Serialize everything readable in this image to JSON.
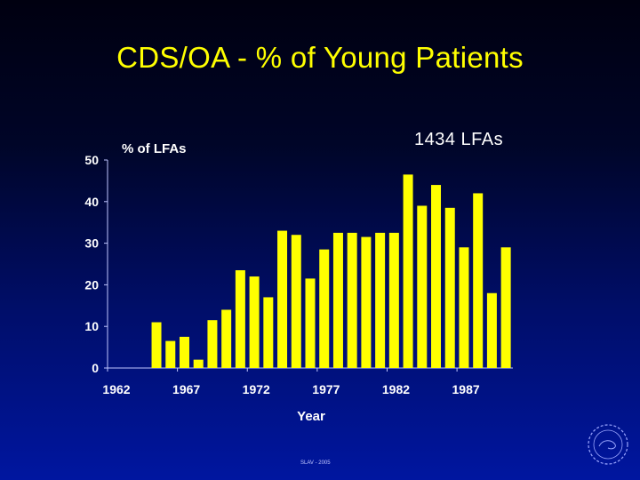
{
  "slide": {
    "title": "CDS/OA - % of Young Patients",
    "annotation": "1434 LFAs",
    "footer": "SLAV - 2005"
  },
  "colors": {
    "title": "#ffff00",
    "bar": "#ffff00",
    "axis_text": "#ffffff"
  },
  "chart_data": {
    "type": "bar",
    "ylabel": "% of LFAs",
    "xlabel": "Year",
    "ylim": [
      0,
      50
    ],
    "yticks": [
      0,
      10,
      20,
      30,
      40,
      50
    ],
    "xticks": [
      1962,
      1967,
      1972,
      1977,
      1982,
      1987
    ],
    "x_range": [
      1962,
      1991
    ],
    "grid": false,
    "series": [
      {
        "color": "#ffff00",
        "points": [
          {
            "x": 1965,
            "y": 11
          },
          {
            "x": 1966,
            "y": 6.5
          },
          {
            "x": 1967,
            "y": 7.5
          },
          {
            "x": 1968,
            "y": 2
          },
          {
            "x": 1969,
            "y": 11.5
          },
          {
            "x": 1970,
            "y": 14
          },
          {
            "x": 1971,
            "y": 23.5
          },
          {
            "x": 1972,
            "y": 22
          },
          {
            "x": 1973,
            "y": 17
          },
          {
            "x": 1974,
            "y": 33
          },
          {
            "x": 1975,
            "y": 32
          },
          {
            "x": 1976,
            "y": 21.5
          },
          {
            "x": 1977,
            "y": 28.5
          },
          {
            "x": 1978,
            "y": 32.5
          },
          {
            "x": 1979,
            "y": 32.5
          },
          {
            "x": 1980,
            "y": 31.5
          },
          {
            "x": 1981,
            "y": 32.5
          },
          {
            "x": 1982,
            "y": 32.5
          },
          {
            "x": 1983,
            "y": 46.5
          },
          {
            "x": 1984,
            "y": 39
          },
          {
            "x": 1985,
            "y": 44
          },
          {
            "x": 1986,
            "y": 38.5
          },
          {
            "x": 1987,
            "y": 29
          },
          {
            "x": 1988,
            "y": 42
          },
          {
            "x": 1989,
            "y": 18
          },
          {
            "x": 1990,
            "y": 29
          }
        ]
      }
    ]
  }
}
